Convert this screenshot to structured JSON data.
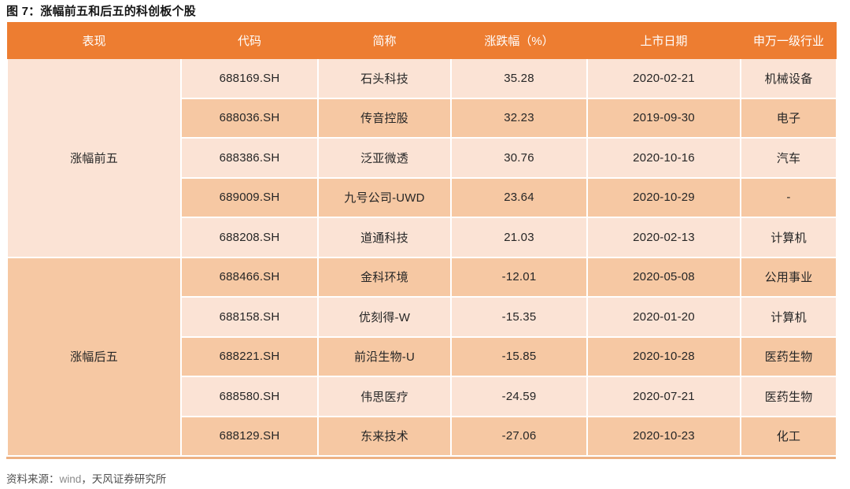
{
  "title": "图 7：涨幅前五和后五的科创板个股",
  "colors": {
    "header_bg": "#ED7D31",
    "header_text": "#FFFFFF",
    "row_light": "#FBE3D5",
    "row_dark": "#F6C8A3",
    "cell_text": "#262626",
    "table_bottom_line": "#EDB183"
  },
  "table": {
    "columns": [
      "表现",
      "代码",
      "简称",
      "涨跌幅（%）",
      "上市日期",
      "申万一级行业"
    ],
    "groups": [
      {
        "label": "涨幅前五",
        "rows": [
          {
            "code": "688169.SH",
            "name": "石头科技",
            "change": "35.28",
            "date": "2020-02-21",
            "industry": "机械设备"
          },
          {
            "code": "688036.SH",
            "name": "传音控股",
            "change": "32.23",
            "date": "2019-09-30",
            "industry": "电子"
          },
          {
            "code": "688386.SH",
            "name": "泛亚微透",
            "change": "30.76",
            "date": "2020-10-16",
            "industry": "汽车"
          },
          {
            "code": "689009.SH",
            "name": "九号公司-UWD",
            "change": "23.64",
            "date": "2020-10-29",
            "industry": "-"
          },
          {
            "code": "688208.SH",
            "name": "道通科技",
            "change": "21.03",
            "date": "2020-02-13",
            "industry": "计算机"
          }
        ]
      },
      {
        "label": "涨幅后五",
        "rows": [
          {
            "code": "688466.SH",
            "name": "金科环境",
            "change": "-12.01",
            "date": "2020-05-08",
            "industry": "公用事业"
          },
          {
            "code": "688158.SH",
            "name": "优刻得-W",
            "change": "-15.35",
            "date": "2020-01-20",
            "industry": "计算机"
          },
          {
            "code": "688221.SH",
            "name": "前沿生物-U",
            "change": "-15.85",
            "date": "2020-10-28",
            "industry": "医药生物"
          },
          {
            "code": "688580.SH",
            "name": "伟思医疗",
            "change": "-24.59",
            "date": "2020-07-21",
            "industry": "医药生物"
          },
          {
            "code": "688129.SH",
            "name": "东来技术",
            "change": "-27.06",
            "date": "2020-10-23",
            "industry": "化工"
          }
        ]
      }
    ]
  },
  "footer": {
    "prefix": "资料来源：",
    "source": "wind",
    "suffix": "，天风证券研究所"
  }
}
